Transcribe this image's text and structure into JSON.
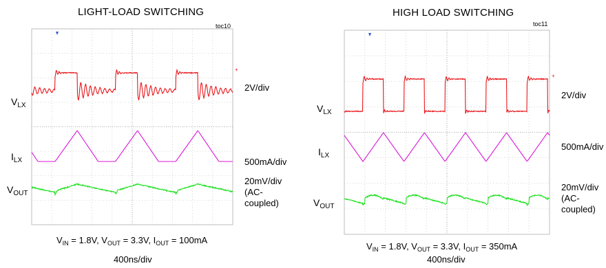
{
  "chart_data": [
    {
      "type": "line",
      "title": "LIGHT-LOAD SWITCHING",
      "figure_id": "toc10",
      "channels": [
        {
          "name": "V_LX",
          "label_main": "V",
          "label_sub": "LX",
          "scale": "2V/div",
          "color": "#e8161b"
        },
        {
          "name": "I_LX",
          "label_main": "I",
          "label_sub": "LX",
          "scale": "500mA/div",
          "color": "#d916d9"
        },
        {
          "name": "V_OUT",
          "label_main": "V",
          "label_sub": "OUT",
          "scale_lines": [
            "20mV/div",
            "(AC-",
            "coupled)"
          ],
          "color": "#22e022"
        }
      ],
      "conditions": {
        "vin_label": "IN",
        "vin": "1.8V",
        "vout_label": "OUT",
        "vout": "3.3V",
        "iout_label": "OUT",
        "iout": "100mA"
      },
      "time_div": "400ns/div",
      "divisions_x": 10,
      "switching_period_div": 3.0,
      "on_time_div": 1.1
    },
    {
      "type": "line",
      "title": "HIGH LOAD SWITCHING",
      "figure_id": "toc11",
      "channels": [
        {
          "name": "V_LX",
          "label_main": "V",
          "label_sub": "LX",
          "scale": "2V/div",
          "color": "#e8161b"
        },
        {
          "name": "I_LX",
          "label_main": "I",
          "label_sub": "LX",
          "scale": "500mA/div",
          "color": "#d916d9"
        },
        {
          "name": "V_OUT",
          "label_main": "V",
          "label_sub": "OUT",
          "scale_lines": [
            "20mV/div",
            "(AC-",
            "coupled)"
          ],
          "color": "#22e022"
        }
      ],
      "conditions": {
        "vin_label": "IN",
        "vin": "1.8V",
        "vout_label": "OUT",
        "vout": "3.3V",
        "iout_label": "OUT",
        "iout": "350mA"
      },
      "time_div": "400ns/div",
      "divisions_x": 10,
      "switching_period_div": 2.0,
      "on_time_div": 1.0
    }
  ]
}
